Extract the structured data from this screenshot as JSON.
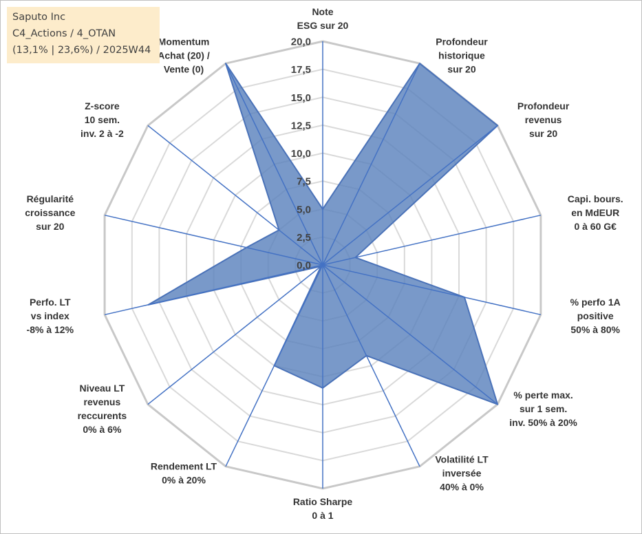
{
  "title_box": {
    "line1": "Saputo Inc",
    "line2": "C4_Actions / 4_OTAN",
    "line3": "(13,1% | 23,6%) / 2025W44"
  },
  "chart_data": {
    "type": "radar",
    "title": "Saputo Inc",
    "rmin": 0,
    "rmax": 20,
    "ticks": [
      "0,0",
      "2,5",
      "5,0",
      "7,5",
      "10,0",
      "12,5",
      "15,0",
      "17,5",
      "20,0"
    ],
    "categories": [
      [
        "Note",
        "ESG sur 20"
      ],
      [
        "Profondeur",
        "historique",
        "sur 20"
      ],
      [
        "Profondeur",
        "revenus",
        "sur 20"
      ],
      [
        "Capi. bours.",
        "en MdEUR",
        "0 à 60 G€"
      ],
      [
        "% perfo 1A",
        "positive",
        "50% à 80%"
      ],
      [
        "% perte max.",
        "sur 1 sem.",
        "inv. 50% à 20%"
      ],
      [
        "Volatilité LT",
        "inversée",
        "40% à 0%"
      ],
      [
        "Ratio Sharpe",
        "0 à 1"
      ],
      [
        "Rendement LT",
        "0% à 20%"
      ],
      [
        "Niveau LT",
        "revenus",
        "reccurents",
        "0% à 6%"
      ],
      [
        "Perfo. LT",
        "vs index",
        "-8% à 12%"
      ],
      [
        "Régularité",
        "croissance",
        "sur 20"
      ],
      [
        "Z-score",
        "10 sem.",
        "inv. 2 à -2"
      ],
      [
        "Momentum",
        "Achat (20) /",
        "Vente (0)"
      ]
    ],
    "series": [
      {
        "name": "Saputo Inc",
        "values": [
          5.0,
          20.0,
          20.0,
          3.0,
          13.0,
          20.0,
          9.0,
          11.0,
          10.0,
          0.2,
          16.0,
          7.0,
          5.0,
          20.0
        ],
        "color": "#5b82bd"
      }
    ],
    "grid": true
  }
}
